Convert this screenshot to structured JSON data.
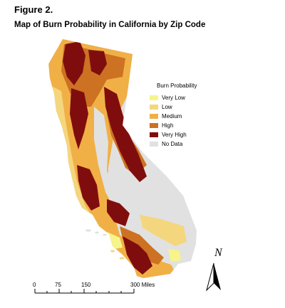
{
  "figure_label": "Figure 2.",
  "title": "Map of Burn Probability in California by Zip Code",
  "legend": {
    "title": "Burn Probability",
    "items": [
      {
        "label": "Very Low",
        "color": "#f6f48a"
      },
      {
        "label": "Low",
        "color": "#f4d67e"
      },
      {
        "label": "Medium",
        "color": "#f0b046"
      },
      {
        "label": "High",
        "color": "#cc7222"
      },
      {
        "label": "Very High",
        "color": "#800d0d"
      },
      {
        "label": "No Data",
        "color": "#e1e1e1"
      }
    ]
  },
  "scale_bar": {
    "labels": [
      "0",
      "75",
      "150",
      "300 Miles"
    ]
  },
  "north_arrow": {
    "label": "N"
  }
}
